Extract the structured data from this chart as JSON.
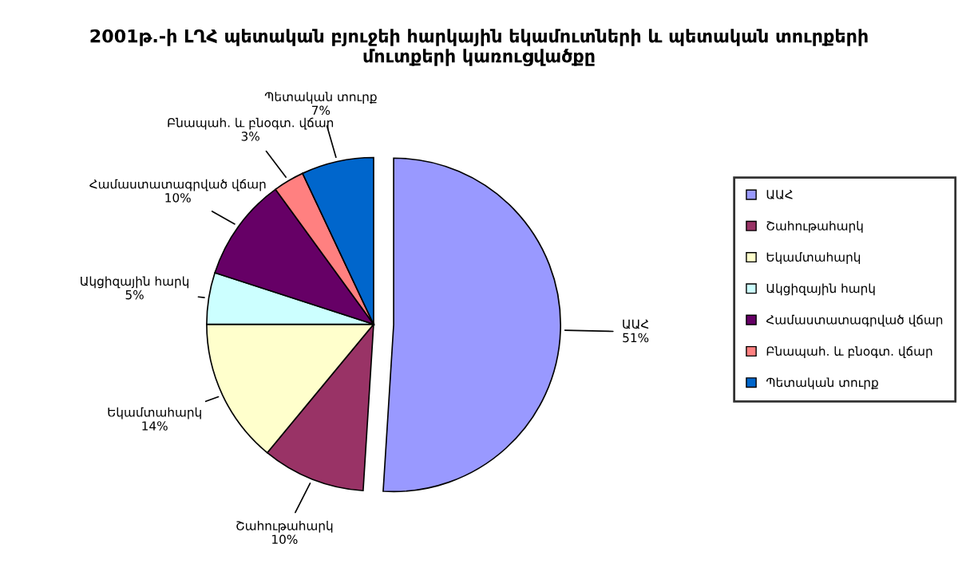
{
  "chart_data": {
    "type": "pie",
    "title": "2001թ.-ի ԼՂՀ պետական բյուջեի հարկային եկամուտների և պետական տուրքերի\nմուտքերի կառուցվածքը",
    "categories": [
      "ԱԱՀ",
      "Շահութահարկ",
      "Եկամտահարկ",
      "Ակցիզային հարկ",
      "Համաստատագրված վճար",
      "Բնապահ. և բնօգտ. վճար",
      "Պետական տուրք"
    ],
    "values": [
      51,
      10,
      14,
      5,
      10,
      3,
      7
    ],
    "value_labels": [
      "51%",
      "10%",
      "14%",
      "5%",
      "10%",
      "3%",
      "7%"
    ],
    "colors": [
      "#9999ff",
      "#993366",
      "#ffffcc",
      "#ccffff",
      "#660066",
      "#ff8080",
      "#0066cc"
    ],
    "legend": "right"
  }
}
